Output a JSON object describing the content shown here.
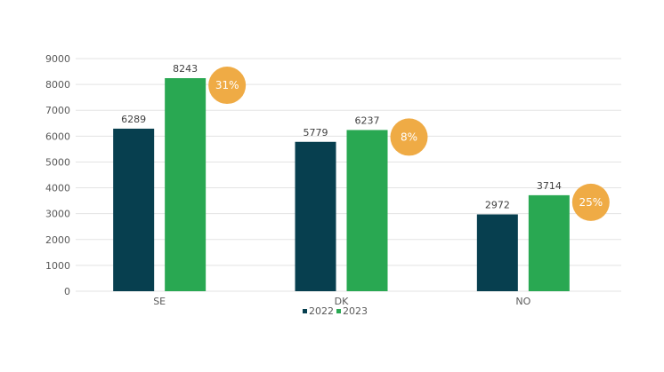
{
  "chart_data": {
    "type": "bar",
    "categories": [
      "SE",
      "DK",
      "NO"
    ],
    "series": [
      {
        "name": "2022",
        "values": [
          6289,
          5779,
          2972
        ],
        "color": "#073f4f"
      },
      {
        "name": "2023",
        "values": [
          8243,
          6237,
          3714
        ],
        "color": "#29a852"
      }
    ],
    "growth_badges": [
      "31%",
      "8%",
      "25%"
    ],
    "badge_color": "#efab45",
    "yticks": [
      0,
      1000,
      2000,
      3000,
      4000,
      5000,
      6000,
      7000,
      8000,
      9000
    ],
    "ylim": [
      0,
      9000
    ],
    "title": "",
    "xlabel": "",
    "ylabel": "",
    "grid": true,
    "legend_position": "bottom"
  }
}
